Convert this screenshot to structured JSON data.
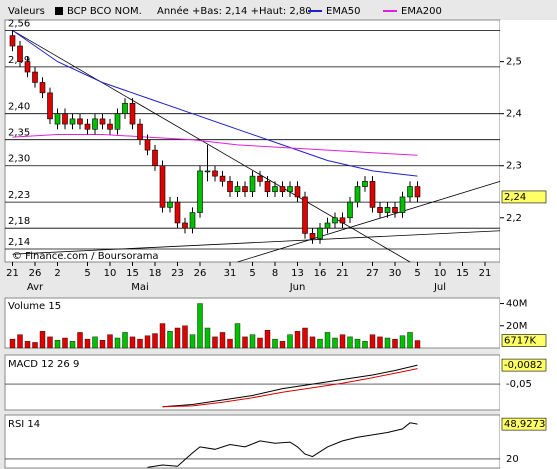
{
  "chart_data": [
    {
      "type": "candlestick",
      "label": "Valeurs",
      "title": "BCP BCO NOM.",
      "subtitle": "Année +Bas: 2,14 +Haut: 2,80",
      "note": "© Finance.com / Boursorama",
      "up_color": "#00c000",
      "down_color": "#e00000",
      "open": [
        2.55,
        2.53,
        2.5,
        2.48,
        2.46,
        2.44,
        2.38,
        2.4,
        2.38,
        2.39,
        2.38,
        2.37,
        2.39,
        2.38,
        2.37,
        2.4,
        2.42,
        2.38,
        2.35,
        2.33,
        2.3,
        2.22,
        2.23,
        2.19,
        2.18,
        2.21,
        2.29,
        2.29,
        2.28,
        2.27,
        2.25,
        2.26,
        2.25,
        2.28,
        2.27,
        2.25,
        2.26,
        2.25,
        2.26,
        2.24,
        2.17,
        2.16,
        2.18,
        2.19,
        2.2,
        2.2,
        2.23,
        2.26,
        2.27,
        2.22,
        2.21,
        2.22,
        2.21,
        2.24,
        2.26
      ],
      "high": [
        2.56,
        2.54,
        2.51,
        2.49,
        2.47,
        2.45,
        2.41,
        2.41,
        2.4,
        2.4,
        2.39,
        2.4,
        2.4,
        2.39,
        2.41,
        2.43,
        2.43,
        2.39,
        2.36,
        2.34,
        2.31,
        2.24,
        2.24,
        2.2,
        2.22,
        2.3,
        2.34,
        2.3,
        2.29,
        2.28,
        2.27,
        2.27,
        2.29,
        2.29,
        2.28,
        2.27,
        2.27,
        2.27,
        2.27,
        2.25,
        2.18,
        2.19,
        2.2,
        2.21,
        2.21,
        2.24,
        2.27,
        2.28,
        2.28,
        2.23,
        2.23,
        2.23,
        2.25,
        2.27,
        2.27
      ],
      "low": [
        2.52,
        2.49,
        2.47,
        2.45,
        2.43,
        2.38,
        2.37,
        2.37,
        2.37,
        2.37,
        2.36,
        2.36,
        2.37,
        2.36,
        2.36,
        2.39,
        2.37,
        2.34,
        2.32,
        2.29,
        2.21,
        2.21,
        2.18,
        2.17,
        2.17,
        2.2,
        2.27,
        2.27,
        2.26,
        2.24,
        2.24,
        2.24,
        2.24,
        2.26,
        2.24,
        2.24,
        2.24,
        2.24,
        2.23,
        2.16,
        2.15,
        2.15,
        2.17,
        2.18,
        2.18,
        2.19,
        2.22,
        2.25,
        2.21,
        2.2,
        2.2,
        2.2,
        2.2,
        2.23,
        2.23
      ],
      "close": [
        2.53,
        2.5,
        2.48,
        2.46,
        2.44,
        2.39,
        2.4,
        2.38,
        2.39,
        2.38,
        2.37,
        2.39,
        2.38,
        2.37,
        2.4,
        2.42,
        2.38,
        2.35,
        2.33,
        2.3,
        2.22,
        2.23,
        2.19,
        2.18,
        2.21,
        2.29,
        2.29,
        2.28,
        2.27,
        2.25,
        2.26,
        2.25,
        2.28,
        2.27,
        2.25,
        2.26,
        2.25,
        2.26,
        2.24,
        2.17,
        2.16,
        2.18,
        2.19,
        2.2,
        2.19,
        2.23,
        2.26,
        2.27,
        2.22,
        2.21,
        2.22,
        2.21,
        2.24,
        2.26,
        2.24
      ],
      "last_label": "2,24",
      "series": [
        {
          "name": "EMA50",
          "color": "#2020d0",
          "x": [
            0,
            6,
            12,
            18,
            24,
            30,
            36,
            42,
            48,
            54
          ],
          "values": [
            2.56,
            2.5,
            2.46,
            2.43,
            2.4,
            2.37,
            2.34,
            2.31,
            2.29,
            2.28
          ]
        },
        {
          "name": "EMA200",
          "color": "#e020e0",
          "x": [
            0,
            6,
            12,
            18,
            24,
            30,
            36,
            42,
            48,
            54
          ],
          "values": [
            2.355,
            2.36,
            2.36,
            2.355,
            2.35,
            2.34,
            2.335,
            2.33,
            2.325,
            2.32
          ]
        }
      ],
      "trendlines": [
        {
          "x": [
            0,
            53
          ],
          "y": [
            2.56,
            2.115
          ]
        },
        {
          "x": [
            30,
            65
          ],
          "y": [
            2.115,
            2.27
          ]
        },
        {
          "x": [
            0,
            65
          ],
          "y": [
            2.13,
            2.175
          ]
        }
      ],
      "xlim": [
        -1,
        65
      ],
      "ylim": [
        2.115,
        2.58
      ],
      "yticks": [
        {
          "value": 2.2,
          "label": "2,2"
        },
        {
          "value": 2.3,
          "label": "2,3"
        },
        {
          "value": 2.4,
          "label": "2,4"
        },
        {
          "value": 2.5,
          "label": "2,5"
        }
      ],
      "levels": [
        {
          "value": 2.56,
          "label": "2,56"
        },
        {
          "value": 2.49,
          "label": "2,49"
        },
        {
          "value": 2.4,
          "label": "2,40"
        },
        {
          "value": 2.35,
          "label": "2,35"
        },
        {
          "value": 2.3,
          "label": "2,30"
        },
        {
          "value": 2.23,
          "label": "2,23"
        },
        {
          "value": 2.18,
          "label": "2,18"
        },
        {
          "value": 2.14,
          "label": "2,14"
        }
      ],
      "xticks": [
        {
          "value": 0,
          "label": "21"
        },
        {
          "value": 3,
          "label": "26"
        },
        {
          "value": 6,
          "label": "2"
        },
        {
          "value": 10,
          "label": "5"
        },
        {
          "value": 13,
          "label": "10"
        },
        {
          "value": 16,
          "label": "15"
        },
        {
          "value": 19,
          "label": "18"
        },
        {
          "value": 22,
          "label": "23"
        },
        {
          "value": 25,
          "label": "26"
        },
        {
          "value": 29,
          "label": "31"
        },
        {
          "value": 32,
          "label": "5"
        },
        {
          "value": 35,
          "label": "8"
        },
        {
          "value": 38,
          "label": "13"
        },
        {
          "value": 41,
          "label": "16"
        },
        {
          "value": 44,
          "label": "21"
        },
        {
          "value": 48,
          "label": "27"
        },
        {
          "value": 51,
          "label": "30"
        },
        {
          "value": 54,
          "label": "5"
        },
        {
          "value": 57,
          "label": "10"
        },
        {
          "value": 60,
          "label": "15"
        },
        {
          "value": 63,
          "label": "21"
        }
      ],
      "months": [
        {
          "value": 3,
          "label": "Avr"
        },
        {
          "value": 17,
          "label": "Mai"
        },
        {
          "value": 38,
          "label": "Jun"
        },
        {
          "value": 57,
          "label": "Jul"
        }
      ]
    },
    {
      "type": "bar",
      "title": "Volume 15",
      "values": [
        8,
        12,
        6,
        5,
        15,
        10,
        7,
        9,
        6,
        14,
        8,
        10,
        7,
        12,
        9,
        14,
        10,
        8,
        11,
        13,
        22,
        15,
        18,
        20,
        12,
        40,
        18,
        10,
        14,
        8,
        22,
        10,
        12,
        9,
        16,
        8,
        6,
        12,
        15,
        18,
        10,
        8,
        14,
        9,
        12,
        10,
        8,
        6,
        12,
        10,
        9,
        8,
        11,
        14,
        6.717
      ],
      "last_label": "6717K",
      "ylim": [
        0,
        45
      ],
      "yticks": [
        {
          "value": 20,
          "label": "20M"
        },
        {
          "value": 40,
          "label": "40M"
        }
      ]
    },
    {
      "type": "line",
      "title": "MACD 12 26 9",
      "series": [
        {
          "color": "#000000",
          "x": [
            20,
            24,
            28,
            32,
            36,
            40,
            44,
            48,
            51,
            54
          ],
          "values": [
            -0.1,
            -0.095,
            -0.085,
            -0.075,
            -0.06,
            -0.05,
            -0.04,
            -0.03,
            -0.02,
            -0.0082
          ]
        },
        {
          "color": "#e00000",
          "x": [
            20,
            24,
            28,
            32,
            36,
            40,
            44,
            48,
            51,
            54
          ],
          "values": [
            -0.1,
            -0.098,
            -0.09,
            -0.08,
            -0.068,
            -0.058,
            -0.048,
            -0.036,
            -0.026,
            -0.016
          ]
        }
      ],
      "last_label": "-0,0082",
      "ylim": [
        -0.107,
        0.014
      ],
      "yticks": [
        {
          "value": -0.05,
          "label": "-0,05"
        }
      ]
    },
    {
      "type": "line",
      "title": "RSI 14",
      "series": [
        {
          "color": "#000000",
          "x": [
            18,
            20,
            22,
            24,
            25,
            27,
            29,
            31,
            33,
            35,
            37,
            38,
            39,
            40,
            42,
            44,
            46,
            48,
            50,
            52,
            53,
            54
          ],
          "values": [
            13,
            15,
            14,
            25,
            30,
            28,
            32,
            30,
            35,
            33,
            34,
            30,
            24,
            22,
            30,
            35,
            38,
            40,
            42,
            45,
            50,
            48.9273
          ]
        }
      ],
      "last_label": "48,9273",
      "ylim": [
        12.5,
        56.5
      ],
      "yticks": [
        20
      ]
    }
  ]
}
